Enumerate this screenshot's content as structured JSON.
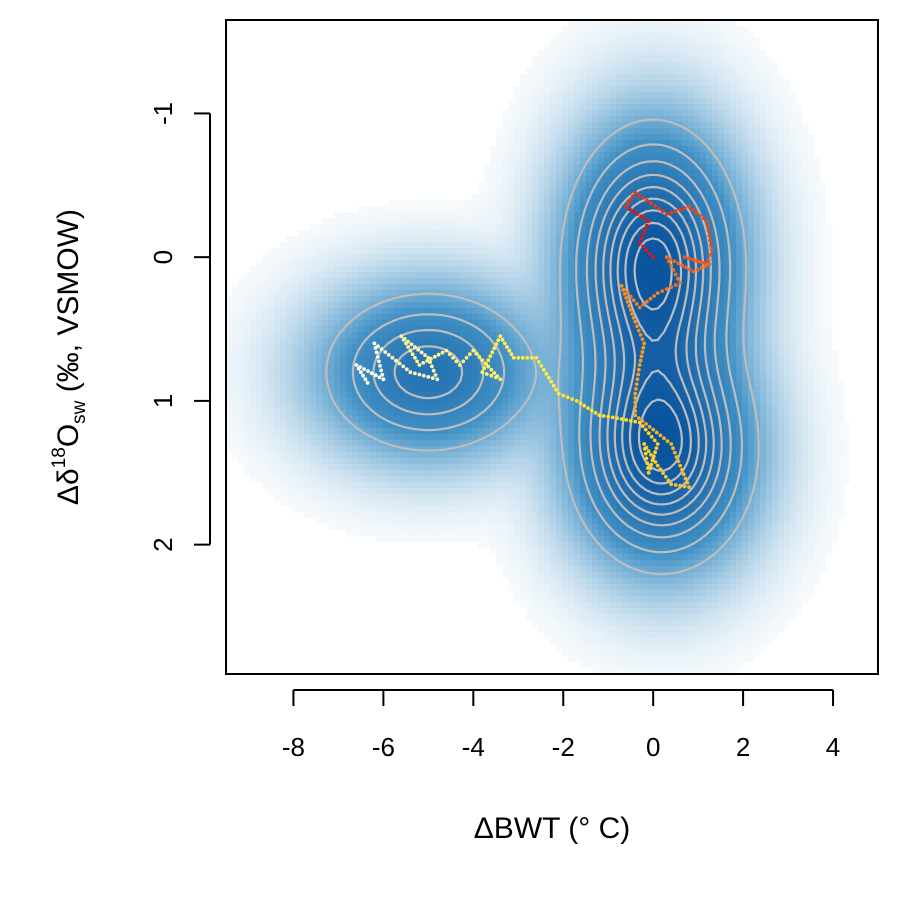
{
  "chart_data": {
    "type": "scatter",
    "xlabel": "ΔBWT (° C)",
    "ylabel": {
      "delta": "Δδ",
      "sup": "18",
      "base": "O",
      "sub": "sw",
      "rest": " (‰, VSMOW)"
    },
    "xlim": [
      -9.5,
      5.0
    ],
    "ylim": [
      2.9,
      -1.65
    ],
    "y_reversed": true,
    "x_ticks": [
      "-8",
      "-6",
      "-4",
      "-2",
      "0",
      "2",
      "4"
    ],
    "y_ticks": [
      "-1",
      "0",
      "1",
      "2"
    ],
    "grid": false,
    "legend": "none",
    "colors": {
      "density_low": "#ffffff",
      "density_high": "#08519c",
      "contour": "#bdbdbd",
      "axis": "#000000"
    },
    "density_modes": [
      {
        "x": 0.0,
        "y": 0.0,
        "sx": 0.95,
        "sy": 0.45,
        "w": 1.0
      },
      {
        "x": 0.2,
        "y": 1.35,
        "sx": 1.0,
        "sy": 0.4,
        "w": 1.0
      },
      {
        "x": -5.0,
        "y": 0.8,
        "sx": 1.25,
        "sy": 0.3,
        "w": 0.55
      },
      {
        "x": 0.0,
        "y": 0.7,
        "sx": 0.9,
        "sy": 0.5,
        "w": 0.35
      }
    ],
    "trajectory": [
      {
        "x": 0.0,
        "y": 0.0,
        "c": "#d7191c"
      },
      {
        "x": -0.3,
        "y": -0.1,
        "c": "#d7191c"
      },
      {
        "x": -0.1,
        "y": -0.25,
        "c": "#d7191c"
      },
      {
        "x": -0.6,
        "y": -0.35,
        "c": "#e03a1e"
      },
      {
        "x": -0.4,
        "y": -0.45,
        "c": "#e03a1e"
      },
      {
        "x": 0.3,
        "y": -0.3,
        "c": "#e03a1e"
      },
      {
        "x": 0.8,
        "y": -0.35,
        "c": "#e84a1f"
      },
      {
        "x": 1.2,
        "y": -0.25,
        "c": "#e84a1f"
      },
      {
        "x": 1.3,
        "y": -0.05,
        "c": "#ee5a20"
      },
      {
        "x": 1.2,
        "y": 0.05,
        "c": "#ee5a20"
      },
      {
        "x": 0.7,
        "y": 0.0,
        "c": "#ee5a20"
      },
      {
        "x": 1.25,
        "y": 0.05,
        "c": "#f06821"
      },
      {
        "x": 0.9,
        "y": 0.1,
        "c": "#f06821"
      },
      {
        "x": 0.3,
        "y": 0.0,
        "c": "#f07522"
      },
      {
        "x": 0.6,
        "y": 0.18,
        "c": "#f07522"
      },
      {
        "x": 0.1,
        "y": 0.25,
        "c": "#f38223"
      },
      {
        "x": -0.3,
        "y": 0.35,
        "c": "#f38223"
      },
      {
        "x": -0.7,
        "y": 0.2,
        "c": "#f58f24"
      },
      {
        "x": -0.4,
        "y": 0.45,
        "c": "#f58f24"
      },
      {
        "x": -0.2,
        "y": 0.6,
        "c": "#f79c25"
      },
      {
        "x": -0.3,
        "y": 0.75,
        "c": "#f79c25"
      },
      {
        "x": -0.4,
        "y": 0.95,
        "c": "#f9a826"
      },
      {
        "x": -0.4,
        "y": 1.1,
        "c": "#f9a826"
      },
      {
        "x": 0.0,
        "y": 1.2,
        "c": "#fab427"
      },
      {
        "x": 0.4,
        "y": 1.3,
        "c": "#fab427"
      },
      {
        "x": 0.6,
        "y": 1.45,
        "c": "#fbbe28"
      },
      {
        "x": 0.8,
        "y": 1.6,
        "c": "#fbbe28"
      },
      {
        "x": 0.4,
        "y": 1.58,
        "c": "#fcc829"
      },
      {
        "x": 0.1,
        "y": 1.45,
        "c": "#fcc829"
      },
      {
        "x": -0.2,
        "y": 1.3,
        "c": "#fdd12a"
      },
      {
        "x": -0.1,
        "y": 1.5,
        "c": "#fdd12a"
      },
      {
        "x": 0.1,
        "y": 1.3,
        "c": "#fdd12a"
      },
      {
        "x": -0.3,
        "y": 1.15,
        "c": "#fddb2b"
      },
      {
        "x": -0.8,
        "y": 1.12,
        "c": "#fddb2b"
      },
      {
        "x": -1.2,
        "y": 1.1,
        "c": "#fee42c"
      },
      {
        "x": -1.7,
        "y": 1.0,
        "c": "#fee42c"
      },
      {
        "x": -2.1,
        "y": 0.95,
        "c": "#feec3a"
      },
      {
        "x": -2.6,
        "y": 0.7,
        "c": "#feec3a"
      },
      {
        "x": -3.1,
        "y": 0.7,
        "c": "#feee50"
      },
      {
        "x": -3.4,
        "y": 0.55,
        "c": "#feee50"
      },
      {
        "x": -3.8,
        "y": 0.8,
        "c": "#fff066"
      },
      {
        "x": -3.4,
        "y": 0.85,
        "c": "#fff066"
      },
      {
        "x": -4.0,
        "y": 0.65,
        "c": "#fff27c"
      },
      {
        "x": -4.3,
        "y": 0.75,
        "c": "#fff27c"
      },
      {
        "x": -4.6,
        "y": 0.65,
        "c": "#fff492"
      },
      {
        "x": -5.2,
        "y": 0.75,
        "c": "#fff492"
      },
      {
        "x": -5.6,
        "y": 0.55,
        "c": "#fff6a8"
      },
      {
        "x": -5.0,
        "y": 0.7,
        "c": "#fff6a8"
      },
      {
        "x": -4.8,
        "y": 0.85,
        "c": "#fff8be"
      },
      {
        "x": -5.4,
        "y": 0.8,
        "c": "#fff8be"
      },
      {
        "x": -5.8,
        "y": 0.7,
        "c": "#fffad2"
      },
      {
        "x": -6.2,
        "y": 0.6,
        "c": "#fffce4"
      },
      {
        "x": -6.0,
        "y": 0.85,
        "c": "#fffdee"
      },
      {
        "x": -6.6,
        "y": 0.75,
        "c": "#fffef6"
      },
      {
        "x": -6.3,
        "y": 0.9,
        "c": "#ffffff"
      }
    ]
  }
}
